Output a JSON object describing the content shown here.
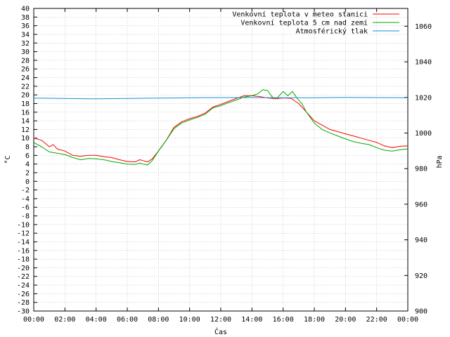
{
  "chart_data": {
    "type": "line",
    "xlabel": "Čas",
    "ylabel_left": "°C",
    "ylabel_right": "hPa",
    "ylim_left": [
      -30,
      40
    ],
    "ylim_right": [
      900,
      1070
    ],
    "xlim": [
      0,
      24
    ],
    "x_ticks": [
      "00:00",
      "02:00",
      "04:00",
      "06:00",
      "08:00",
      "10:00",
      "12:00",
      "14:00",
      "16:00",
      "18:00",
      "20:00",
      "22:00",
      "00:00"
    ],
    "y_left_ticks": [
      40,
      38,
      36,
      34,
      32,
      30,
      28,
      26,
      24,
      22,
      20,
      18,
      16,
      14,
      12,
      10,
      8,
      6,
      4,
      2,
      0,
      -2,
      -4,
      -6,
      -8,
      -10,
      -12,
      -14,
      -16,
      -18,
      -20,
      -22,
      -24,
      -26,
      -28,
      -30
    ],
    "y_right_ticks": [
      1060,
      1040,
      1020,
      1000,
      980,
      960,
      940,
      920,
      900
    ],
    "grid": true,
    "legend_position": "top-right",
    "series": [
      {
        "name": "Venkovní teplota v meteo stanici",
        "color": "#ff0000",
        "axis": "left",
        "x": [
          0,
          0.5,
          1,
          1.25,
          1.5,
          2,
          2.5,
          3,
          3.5,
          4,
          4.5,
          5,
          5.5,
          6,
          6.5,
          6.8,
          7,
          7.3,
          7.6,
          8,
          8.5,
          9,
          9.5,
          10,
          10.5,
          11,
          11.5,
          12,
          12.5,
          13,
          13.5,
          14,
          14.5,
          15,
          15.5,
          16,
          16.5,
          17,
          17.5,
          18,
          18.5,
          19,
          19.5,
          20,
          20.5,
          21,
          21.5,
          22,
          22.5,
          23,
          23.5,
          24
        ],
        "y": [
          10,
          9.5,
          8,
          8.5,
          7.5,
          7,
          6,
          5.8,
          6,
          6,
          5.7,
          5.5,
          5,
          4.6,
          4.5,
          5,
          4.8,
          4.5,
          5.2,
          7,
          9.5,
          12.5,
          13.8,
          14.5,
          15,
          15.8,
          17.2,
          17.8,
          18.5,
          19.2,
          19.8,
          19.8,
          19.6,
          19.3,
          19.1,
          19.3,
          19.2,
          18,
          16,
          14,
          13,
          12,
          11.5,
          11,
          10.5,
          10,
          9.5,
          9,
          8.2,
          7.8,
          8.1,
          8.2
        ]
      },
      {
        "name": "Venkovní teplota 5 cm nad zemí",
        "color": "#00aa00",
        "axis": "left",
        "x": [
          0,
          0.5,
          1,
          1.5,
          2,
          2.5,
          3,
          3.5,
          4,
          4.5,
          5,
          5.5,
          6,
          6.5,
          6.8,
          7,
          7.3,
          7.6,
          8,
          8.5,
          9,
          9.5,
          10,
          10.5,
          11,
          11.5,
          12,
          12.5,
          13,
          13.5,
          14,
          14.4,
          14.7,
          15,
          15.3,
          15.6,
          16,
          16.3,
          16.6,
          16.9,
          17.2,
          17.5,
          18,
          18.5,
          19,
          19.5,
          20,
          20.5,
          21,
          21.5,
          22,
          22.5,
          23,
          23.5,
          24
        ],
        "y": [
          9,
          8,
          6.8,
          6.5,
          6.2,
          5.5,
          5,
          5.3,
          5.2,
          5,
          4.6,
          4.3,
          4,
          3.9,
          4.2,
          4,
          3.8,
          4.8,
          7,
          9.5,
          12.2,
          13.5,
          14.2,
          14.8,
          15.5,
          17,
          17.5,
          18.2,
          18.8,
          19.5,
          19.8,
          20.3,
          21.2,
          21,
          19.5,
          19.2,
          20.8,
          19.8,
          20.8,
          19.2,
          18,
          16,
          13.5,
          12,
          11.2,
          10.5,
          9.8,
          9.2,
          8.8,
          8.5,
          7.8,
          7.2,
          7,
          7.3,
          7.5
        ]
      },
      {
        "name": "Atmosférický tlak",
        "color": "#1a8fd0",
        "axis": "right",
        "x": [
          0,
          2,
          4,
          6,
          8,
          10,
          12,
          14,
          16,
          18,
          20,
          22,
          24
        ],
        "y": [
          1019.6,
          1019.4,
          1019.2,
          1019.4,
          1019.6,
          1019.8,
          1019.9,
          1019.9,
          1019.8,
          1019.8,
          1020,
          1019.9,
          1019.8
        ]
      }
    ]
  }
}
